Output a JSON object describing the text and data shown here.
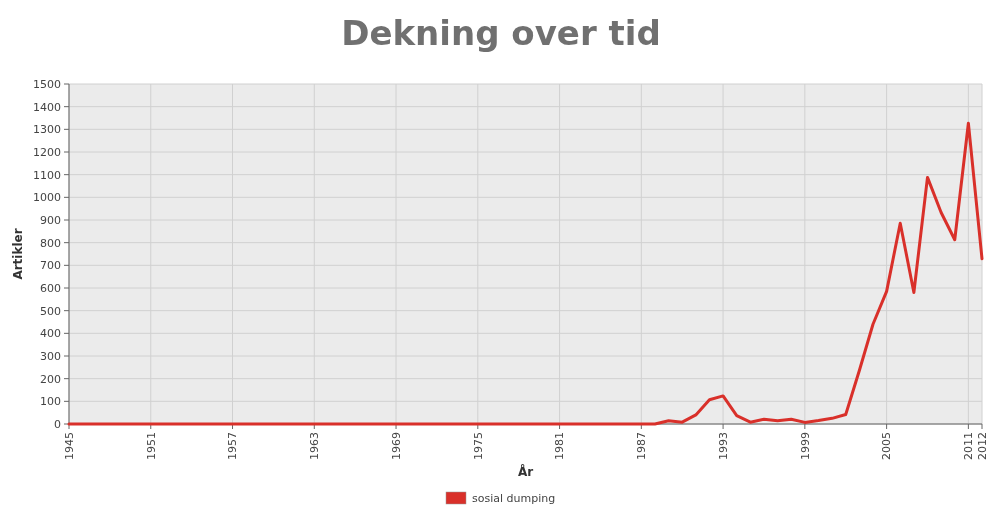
{
  "chart_data": {
    "type": "line",
    "title": "Dekning over tid",
    "xlabel": "År",
    "ylabel": "Artikler",
    "x": [
      1945,
      1946,
      1947,
      1948,
      1949,
      1950,
      1951,
      1952,
      1953,
      1954,
      1955,
      1956,
      1957,
      1958,
      1959,
      1960,
      1961,
      1962,
      1963,
      1964,
      1965,
      1966,
      1967,
      1968,
      1969,
      1970,
      1971,
      1972,
      1973,
      1974,
      1975,
      1976,
      1977,
      1978,
      1979,
      1980,
      1981,
      1982,
      1983,
      1984,
      1985,
      1986,
      1987,
      1988,
      1989,
      1990,
      1991,
      1992,
      1993,
      1994,
      1995,
      1996,
      1997,
      1998,
      1999,
      2000,
      2001,
      2002,
      2003,
      2004,
      2005,
      2006,
      2007,
      2008,
      2009,
      2010,
      2011,
      2012
    ],
    "series": [
      {
        "name": "sosial dumping",
        "color": "#d9302a",
        "values": [
          0,
          0,
          0,
          0,
          0,
          0,
          0,
          0,
          0,
          0,
          0,
          0,
          0,
          0,
          0,
          0,
          0,
          0,
          0,
          0,
          0,
          0,
          0,
          0,
          0,
          0,
          0,
          0,
          0,
          0,
          0,
          0,
          0,
          0,
          0,
          0,
          0,
          0,
          0,
          0,
          0,
          0,
          0,
          0,
          14,
          8,
          40,
          107,
          124,
          37,
          8,
          21,
          14,
          21,
          7,
          15,
          25,
          42,
          236,
          440,
          585,
          886,
          580,
          1088,
          933,
          813,
          1327,
          729
        ]
      }
    ],
    "xlim": [
      1945,
      2012
    ],
    "xticks": [
      1945,
      1951,
      1957,
      1963,
      1969,
      1975,
      1981,
      1987,
      1993,
      1999,
      2005,
      2011,
      2012
    ],
    "ylim": [
      0,
      1500
    ],
    "yticks": [
      0,
      100,
      200,
      300,
      400,
      500,
      600,
      700,
      800,
      900,
      1000,
      1100,
      1200,
      1300,
      1400,
      1500
    ],
    "grid": true,
    "legend": "bottom"
  }
}
